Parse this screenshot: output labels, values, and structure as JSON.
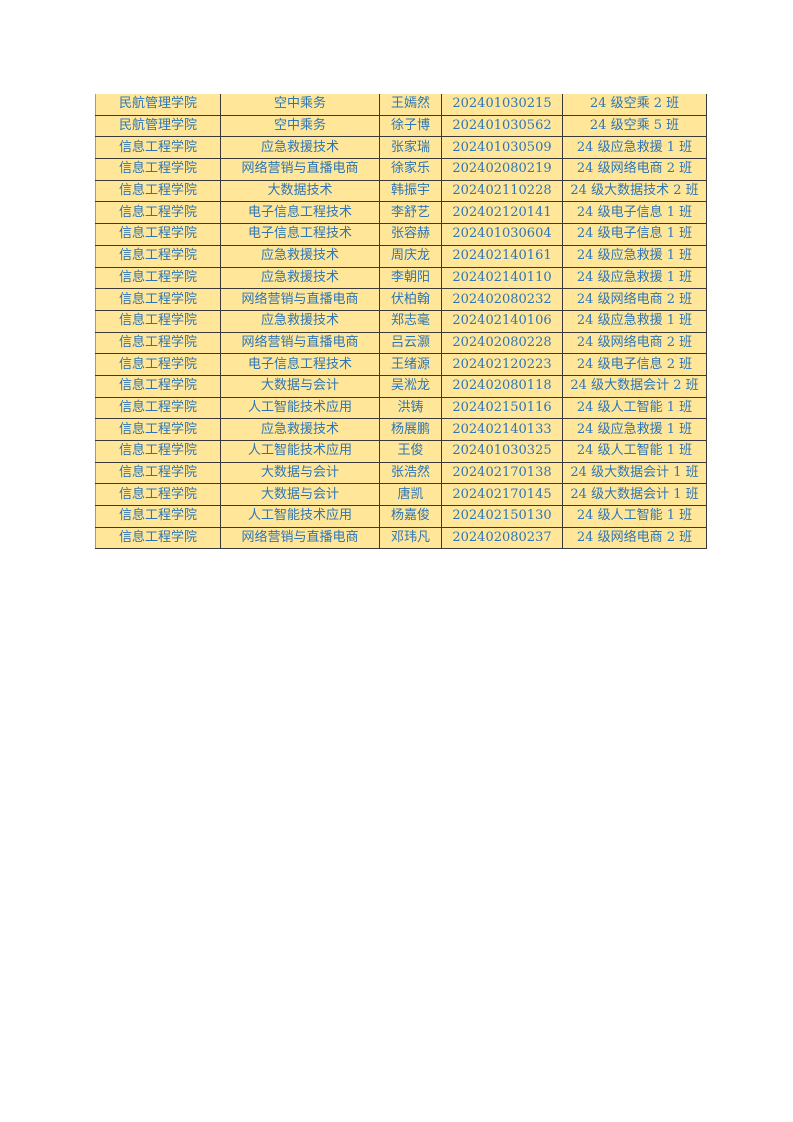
{
  "colors": {
    "cell_fill": "#FFE699",
    "text": "#2E75B6"
  },
  "table": {
    "rows": [
      [
        "民航管理学院",
        "空中乘务",
        "王嫣然",
        "202401030215",
        "24 级空乘 2 班"
      ],
      [
        "民航管理学院",
        "空中乘务",
        "徐子博",
        "202401030562",
        "24 级空乘 5 班"
      ],
      [
        "信息工程学院",
        "应急救援技术",
        "张家瑞",
        "202401030509",
        "24 级应急救援 1 班"
      ],
      [
        "信息工程学院",
        "网络营销与直播电商",
        "徐家乐",
        "202402080219",
        "24 级网络电商 2 班"
      ],
      [
        "信息工程学院",
        "大数据技术",
        "韩振宇",
        "202402110228",
        "24 级大数据技术 2 班"
      ],
      [
        "信息工程学院",
        "电子信息工程技术",
        "李舒艺",
        "202402120141",
        "24 级电子信息 1 班"
      ],
      [
        "信息工程学院",
        "电子信息工程技术",
        "张容赫",
        "202401030604",
        "24 级电子信息 1 班"
      ],
      [
        "信息工程学院",
        "应急救援技术",
        "周庆龙",
        "202402140161",
        "24 级应急救援 1 班"
      ],
      [
        "信息工程学院",
        "应急救援技术",
        "李朝阳",
        "202402140110",
        "24 级应急救援 1 班"
      ],
      [
        "信息工程学院",
        "网络营销与直播电商",
        "伏柏翰",
        "202402080232",
        "24 级网络电商 2 班"
      ],
      [
        "信息工程学院",
        "应急救援技术",
        "郑志毫",
        "202402140106",
        "24 级应急救援 1 班"
      ],
      [
        "信息工程学院",
        "网络营销与直播电商",
        "吕云灏",
        "202402080228",
        "24 级网络电商 2 班"
      ],
      [
        "信息工程学院",
        "电子信息工程技术",
        "王绪源",
        "202402120223",
        "24 级电子信息 2 班"
      ],
      [
        "信息工程学院",
        "大数据与会计",
        "吴淞龙",
        "202402080118",
        "24 级大数据会计 2 班"
      ],
      [
        "信息工程学院",
        "人工智能技术应用",
        "洪铸",
        "202402150116",
        "24 级人工智能 1 班"
      ],
      [
        "信息工程学院",
        "应急救援技术",
        "杨展鹏",
        "202402140133",
        "24 级应急救援 1 班"
      ],
      [
        "信息工程学院",
        "人工智能技术应用",
        "王俊",
        "202401030325",
        "24 级人工智能 1 班"
      ],
      [
        "信息工程学院",
        "大数据与会计",
        "张浩然",
        "202402170138",
        "24 级大数据会计 1 班"
      ],
      [
        "信息工程学院",
        "大数据与会计",
        "唐凯",
        "202402170145",
        "24 级大数据会计 1 班"
      ],
      [
        "信息工程学院",
        "人工智能技术应用",
        "杨嘉俊",
        "202402150130",
        "24 级人工智能 1 班"
      ],
      [
        "信息工程学院",
        "网络营销与直播电商",
        "邓玮凡",
        "202402080237",
        "24 级网络电商 2 班"
      ]
    ]
  }
}
